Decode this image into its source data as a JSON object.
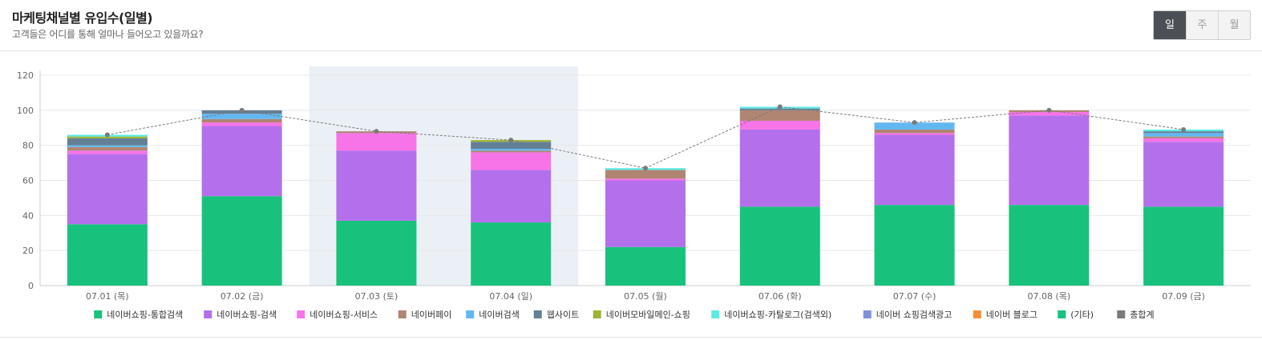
{
  "header": {
    "title": "마케팅채널별 유입수(일별)",
    "subtitle": "고객들은 어디를 통해 얼마나 들어오고 있을까요?"
  },
  "period_toggle": {
    "options": [
      "일",
      "주",
      "월"
    ],
    "selected": "일"
  },
  "chart_data": {
    "type": "bar",
    "stacked": true,
    "categories": [
      "07.01 (목)",
      "07.02 (금)",
      "07.03 (토)",
      "07.04 (일)",
      "07.05 (월)",
      "07.06 (화)",
      "07.07 (수)",
      "07.08 (목)",
      "07.09 (금)"
    ],
    "ylim": [
      0,
      120
    ],
    "yticks": [
      0,
      20,
      40,
      60,
      80,
      100,
      120
    ],
    "grid": true,
    "legend_position": "bottom",
    "highlighted_categories": [
      "07.03 (토)",
      "07.04 (일)"
    ],
    "series": [
      {
        "name": "네이버쇼핑-통합검색",
        "color": "#18c27c",
        "values": [
          35,
          51,
          37,
          36,
          22,
          45,
          46,
          46,
          45
        ]
      },
      {
        "name": "네이버쇼핑-검색",
        "color": "#b470ec",
        "values": [
          40,
          40,
          40,
          30,
          38,
          44,
          40,
          51,
          37
        ]
      },
      {
        "name": "네이버쇼핑-서비스",
        "color": "#f773e8",
        "values": [
          2,
          2,
          10,
          10,
          1,
          5,
          1,
          2,
          2
        ]
      },
      {
        "name": "네이버페이",
        "color": "#b08572",
        "values": [
          2,
          2,
          1,
          1,
          5,
          6,
          2,
          1,
          1
        ]
      },
      {
        "name": "네이버검색",
        "color": "#63b7f1",
        "values": [
          1,
          3,
          0,
          1,
          0,
          0,
          4,
          0,
          2
        ]
      },
      {
        "name": "웹사이트",
        "color": "#627f96",
        "values": [
          4,
          2,
          0,
          4,
          0,
          1,
          0,
          0,
          1
        ]
      },
      {
        "name": "네이버모바일메인-쇼핑",
        "color": "#9fb335",
        "values": [
          1,
          0,
          0,
          1,
          0,
          0,
          0,
          0,
          0
        ]
      },
      {
        "name": "네이버쇼핑-카탈로그(검색외)",
        "color": "#5cebe3",
        "values": [
          1,
          0,
          0,
          0,
          1,
          1,
          0,
          0,
          1
        ]
      },
      {
        "name": "네이버 쇼핑검색광고",
        "color": "#7f8fd9",
        "values": [
          0,
          0,
          0,
          0,
          0,
          0,
          0,
          0,
          0
        ]
      },
      {
        "name": "네이버 블로그",
        "color": "#f28f3b",
        "values": [
          0,
          0,
          0,
          0,
          0,
          0,
          0,
          0,
          0
        ]
      },
      {
        "name": "(기타)",
        "color": "#18c27c",
        "values": [
          0,
          0,
          0,
          0,
          0,
          0,
          0,
          0,
          0
        ]
      }
    ],
    "total": {
      "name": "총합계",
      "color": "#7a7a7a",
      "values": [
        86,
        100,
        88,
        83,
        67,
        102,
        93,
        100,
        89
      ]
    }
  }
}
